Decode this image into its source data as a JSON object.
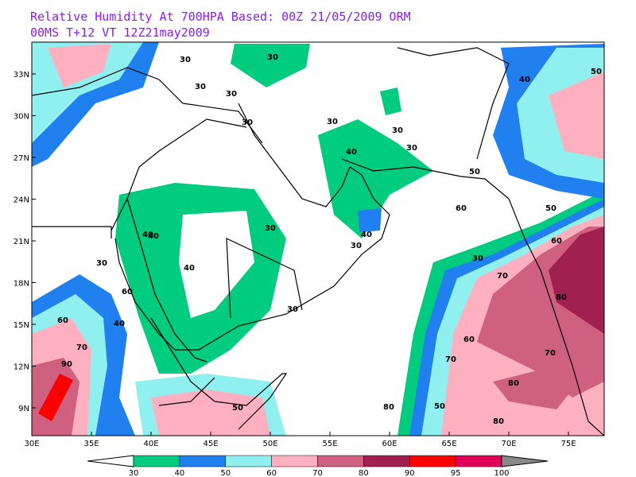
{
  "title_lines": [
    "Relative Humidity At 700HPA   Based: 00Z  21/05/2009  ORM",
    "00MS  T+12 VT 12Z21may2009"
  ],
  "lat_labels": [
    "9N",
    "12N",
    "15N",
    "18N",
    "21N",
    "24N",
    "27N",
    "30N",
    "33N"
  ],
  "lon_labels": [
    "30E",
    "35E",
    "40E",
    "45E",
    "50E",
    "55E",
    "60E",
    "65E",
    "70E",
    "75E"
  ],
  "colorbar": {
    "levels": [
      30,
      40,
      50,
      60,
      70,
      80,
      90,
      95,
      100
    ],
    "colors": [
      "#ffffff",
      "#00cc80",
      "#2080f0",
      "#90f0f0",
      "#ffb0c0",
      "#d06080",
      "#a02050",
      "#ff0000",
      "#e0005a",
      "#888888"
    ]
  },
  "contour_labels": [
    "30",
    "30",
    "30",
    "30",
    "30",
    "30",
    "30",
    "30",
    "30",
    "30",
    "30",
    "30",
    "40",
    "40",
    "40",
    "40",
    "40",
    "40",
    "50",
    "50",
    "50",
    "50",
    "60",
    "60",
    "60",
    "60",
    "70",
    "70",
    "70",
    "70",
    "80",
    "80",
    "80",
    "80",
    "90",
    "30",
    "40",
    "50",
    "60"
  ]
}
